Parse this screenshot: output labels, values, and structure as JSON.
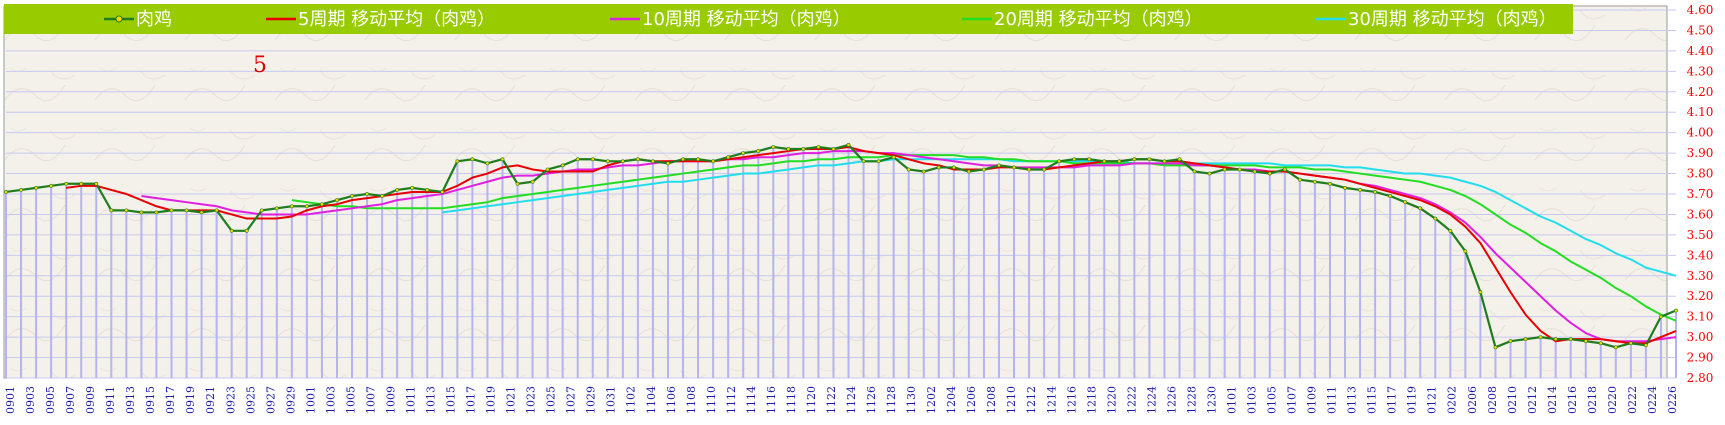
{
  "chart_data": {
    "type": "line",
    "annotation": "5",
    "y_axis": {
      "min": 2.8,
      "max": 4.6,
      "step": 0.1,
      "tick_labels": [
        "2.80",
        "2.90",
        "3.00",
        "3.10",
        "3.20",
        "3.30",
        "3.40",
        "3.50",
        "3.60",
        "3.70",
        "3.80",
        "3.90",
        "4.00",
        "4.10",
        "4.20",
        "4.30",
        "4.40",
        "4.50",
        "4.60"
      ],
      "position": "right"
    },
    "x_tick_labels": [
      "0901",
      "0903",
      "0905",
      "0907",
      "0909",
      "0911",
      "0913",
      "0915",
      "0917",
      "0919",
      "0921",
      "0923",
      "0925",
      "0927",
      "0929",
      "1001",
      "1003",
      "1005",
      "1007",
      "1009",
      "1011",
      "1013",
      "1015",
      "1017",
      "1019",
      "1021",
      "1023",
      "1025",
      "1027",
      "1029",
      "1031",
      "1102",
      "1104",
      "1106",
      "1108",
      "1110",
      "1112",
      "1114",
      "1116",
      "1118",
      "1120",
      "1122",
      "1124",
      "1126",
      "1128",
      "1130",
      "1202",
      "1204",
      "1206",
      "1208",
      "1210",
      "1212",
      "1214",
      "1216",
      "1218",
      "1220",
      "1222",
      "1224",
      "1226",
      "1228",
      "1230",
      "0101",
      "0103",
      "0105",
      "0107",
      "0109",
      "0111",
      "0113",
      "0115",
      "0117",
      "0119",
      "0121",
      "0202",
      "0206",
      "0208",
      "0210",
      "0212",
      "0214",
      "0216",
      "0218",
      "0220",
      "0222",
      "0224",
      "0226"
    ],
    "grid": true,
    "legend_position": "top",
    "colors": {
      "legend_bg": "#99cc00",
      "price": "#1e7d1e",
      "price_marker": "#ffd700",
      "ma5": "#e60000",
      "ma10": "#e020e0",
      "ma20": "#22dd22",
      "ma30": "#22ddee",
      "grid": "#c8c8f0",
      "bar": "#b4b4ee",
      "y_tick": "#ff0000",
      "x_tick": "#1a1aa6"
    },
    "series": [
      {
        "name": "肉鸡",
        "key": "price",
        "values": [
          3.71,
          3.72,
          3.73,
          3.74,
          3.75,
          3.75,
          3.75,
          3.62,
          3.62,
          3.61,
          3.61,
          3.62,
          3.62,
          3.61,
          3.62,
          3.52,
          3.52,
          3.62,
          3.63,
          3.64,
          3.64,
          3.65,
          3.67,
          3.69,
          3.7,
          3.69,
          3.72,
          3.73,
          3.72,
          3.71,
          3.86,
          3.87,
          3.85,
          3.87,
          3.75,
          3.76,
          3.82,
          3.84,
          3.87,
          3.87,
          3.86,
          3.86,
          3.87,
          3.86,
          3.85,
          3.87,
          3.87,
          3.86,
          3.88,
          3.9,
          3.91,
          3.93,
          3.92,
          3.92,
          3.93,
          3.92,
          3.94,
          3.86,
          3.86,
          3.88,
          3.82,
          3.81,
          3.83,
          3.83,
          3.81,
          3.82,
          3.84,
          3.83,
          3.82,
          3.82,
          3.86,
          3.87,
          3.87,
          3.86,
          3.86,
          3.87,
          3.87,
          3.86,
          3.87,
          3.81,
          3.8,
          3.82,
          3.82,
          3.81,
          3.8,
          3.82,
          3.77,
          3.76,
          3.75,
          3.73,
          3.72,
          3.71,
          3.69,
          3.66,
          3.63,
          3.58,
          3.52,
          3.42,
          3.22,
          2.95,
          2.98,
          2.99,
          3.0,
          2.99,
          2.99,
          2.98,
          2.97,
          2.95,
          2.97,
          2.96,
          3.1,
          3.13
        ]
      },
      {
        "name": "5周期 移动平均（肉鸡）",
        "key": "ma5",
        "values": [
          null,
          null,
          null,
          null,
          3.73,
          3.74,
          3.74,
          3.72,
          3.7,
          3.67,
          3.64,
          3.62,
          3.62,
          3.62,
          3.62,
          3.6,
          3.58,
          3.58,
          3.58,
          3.59,
          3.62,
          3.64,
          3.65,
          3.67,
          3.68,
          3.69,
          3.7,
          3.71,
          3.71,
          3.71,
          3.74,
          3.78,
          3.8,
          3.83,
          3.84,
          3.82,
          3.81,
          3.81,
          3.81,
          3.81,
          3.84,
          3.86,
          3.87,
          3.86,
          3.86,
          3.86,
          3.86,
          3.86,
          3.87,
          3.88,
          3.89,
          3.9,
          3.91,
          3.92,
          3.92,
          3.92,
          3.93,
          3.91,
          3.9,
          3.89,
          3.87,
          3.85,
          3.84,
          3.82,
          3.82,
          3.82,
          3.83,
          3.83,
          3.82,
          3.82,
          3.83,
          3.84,
          3.85,
          3.86,
          3.86,
          3.87,
          3.87,
          3.86,
          3.86,
          3.85,
          3.84,
          3.83,
          3.82,
          3.81,
          3.81,
          3.81,
          3.8,
          3.79,
          3.78,
          3.77,
          3.75,
          3.73,
          3.71,
          3.69,
          3.67,
          3.64,
          3.6,
          3.54,
          3.46,
          3.34,
          3.22,
          3.11,
          3.03,
          2.98,
          2.99,
          2.99,
          2.99,
          2.98,
          2.97,
          2.97,
          3.0,
          3.03
        ]
      },
      {
        "name": "10周期 移动平均（肉鸡）",
        "key": "ma10",
        "values": [
          null,
          null,
          null,
          null,
          null,
          null,
          null,
          null,
          null,
          3.69,
          3.68,
          3.67,
          3.66,
          3.65,
          3.64,
          3.62,
          3.61,
          3.6,
          3.6,
          3.6,
          3.6,
          3.61,
          3.62,
          3.63,
          3.64,
          3.65,
          3.67,
          3.68,
          3.69,
          3.7,
          3.72,
          3.74,
          3.76,
          3.78,
          3.79,
          3.79,
          3.8,
          3.81,
          3.82,
          3.82,
          3.83,
          3.84,
          3.84,
          3.85,
          3.86,
          3.86,
          3.86,
          3.86,
          3.87,
          3.87,
          3.88,
          3.88,
          3.89,
          3.9,
          3.9,
          3.91,
          3.91,
          3.91,
          3.9,
          3.9,
          3.89,
          3.88,
          3.87,
          3.86,
          3.85,
          3.84,
          3.84,
          3.83,
          3.83,
          3.83,
          3.83,
          3.83,
          3.84,
          3.84,
          3.84,
          3.85,
          3.85,
          3.85,
          3.85,
          3.84,
          3.84,
          3.83,
          3.82,
          3.82,
          3.81,
          3.81,
          3.8,
          3.79,
          3.78,
          3.77,
          3.75,
          3.74,
          3.72,
          3.7,
          3.68,
          3.65,
          3.61,
          3.56,
          3.49,
          3.41,
          3.34,
          3.27,
          3.2,
          3.13,
          3.07,
          3.02,
          2.99,
          2.98,
          2.98,
          2.98,
          2.99,
          3.0
        ]
      },
      {
        "name": "20周期 移动平均（肉鸡）",
        "key": "ma20",
        "values": [
          null,
          null,
          null,
          null,
          null,
          null,
          null,
          null,
          null,
          null,
          null,
          null,
          null,
          null,
          null,
          null,
          null,
          null,
          null,
          3.67,
          3.66,
          3.65,
          3.64,
          3.64,
          3.63,
          3.63,
          3.63,
          3.63,
          3.63,
          3.63,
          3.64,
          3.65,
          3.66,
          3.68,
          3.69,
          3.7,
          3.71,
          3.72,
          3.73,
          3.74,
          3.75,
          3.76,
          3.77,
          3.78,
          3.79,
          3.8,
          3.81,
          3.82,
          3.83,
          3.84,
          3.84,
          3.85,
          3.86,
          3.86,
          3.87,
          3.87,
          3.88,
          3.88,
          3.88,
          3.89,
          3.89,
          3.89,
          3.89,
          3.89,
          3.88,
          3.88,
          3.87,
          3.87,
          3.86,
          3.86,
          3.86,
          3.85,
          3.85,
          3.85,
          3.85,
          3.85,
          3.85,
          3.84,
          3.84,
          3.84,
          3.84,
          3.84,
          3.84,
          3.84,
          3.83,
          3.83,
          3.83,
          3.82,
          3.82,
          3.81,
          3.8,
          3.79,
          3.78,
          3.77,
          3.76,
          3.74,
          3.72,
          3.69,
          3.65,
          3.6,
          3.55,
          3.51,
          3.46,
          3.42,
          3.37,
          3.33,
          3.29,
          3.24,
          3.2,
          3.15,
          3.11,
          3.08
        ]
      },
      {
        "name": "30周期 移动平均（肉鸡）",
        "key": "ma30",
        "values": [
          null,
          null,
          null,
          null,
          null,
          null,
          null,
          null,
          null,
          null,
          null,
          null,
          null,
          null,
          null,
          null,
          null,
          null,
          null,
          null,
          null,
          null,
          null,
          null,
          null,
          null,
          null,
          null,
          null,
          3.61,
          3.62,
          3.63,
          3.64,
          3.65,
          3.66,
          3.67,
          3.68,
          3.69,
          3.7,
          3.71,
          3.72,
          3.73,
          3.74,
          3.75,
          3.76,
          3.76,
          3.77,
          3.78,
          3.79,
          3.8,
          3.8,
          3.81,
          3.82,
          3.83,
          3.84,
          3.84,
          3.85,
          3.86,
          3.86,
          3.87,
          3.87,
          3.87,
          3.87,
          3.87,
          3.87,
          3.87,
          3.87,
          3.86,
          3.86,
          3.86,
          3.86,
          3.86,
          3.86,
          3.86,
          3.86,
          3.85,
          3.85,
          3.85,
          3.85,
          3.85,
          3.85,
          3.85,
          3.85,
          3.85,
          3.85,
          3.84,
          3.84,
          3.84,
          3.84,
          3.83,
          3.83,
          3.82,
          3.81,
          3.8,
          3.8,
          3.79,
          3.78,
          3.76,
          3.74,
          3.71,
          3.67,
          3.63,
          3.59,
          3.56,
          3.52,
          3.48,
          3.45,
          3.41,
          3.38,
          3.34,
          3.32,
          3.3
        ]
      }
    ]
  }
}
